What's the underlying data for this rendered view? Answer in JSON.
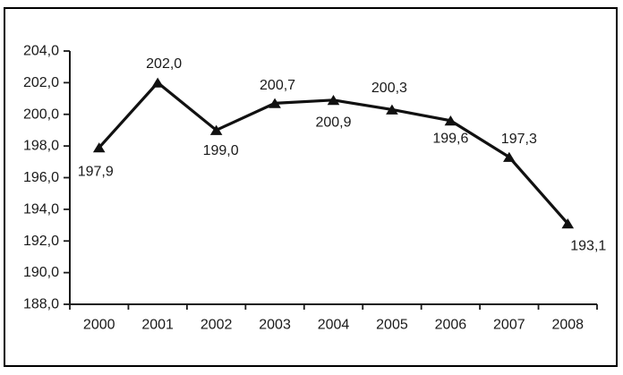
{
  "chart": {
    "background_color": "#ffffff",
    "frame_border_color": "#000000",
    "text_color": "#1a1a1a",
    "series_color": "#111111"
  },
  "chart_data": {
    "type": "line",
    "title": "",
    "xlabel": "",
    "ylabel": "",
    "categories": [
      "2000",
      "2001",
      "2002",
      "2003",
      "2004",
      "2005",
      "2006",
      "2007",
      "2008"
    ],
    "series": [
      {
        "name": "",
        "values": [
          197.9,
          202.0,
          199.0,
          200.7,
          200.9,
          200.3,
          199.6,
          197.3,
          193.1
        ],
        "point_labels": [
          "197,9",
          "202,0",
          "199,0",
          "200,7",
          "200,9",
          "200,3",
          "199,6",
          "197,3",
          "193,1"
        ],
        "label_placement": [
          "below",
          "above",
          "below",
          "above",
          "below",
          "above",
          "below",
          "above",
          "below"
        ],
        "label_offsets": [
          [
            -4,
            27
          ],
          [
            7,
            -21
          ],
          [
            5,
            23
          ],
          [
            3,
            -20
          ],
          [
            0,
            25
          ],
          [
            -3,
            -24
          ],
          [
            0,
            20
          ],
          [
            11,
            -20
          ],
          [
            23,
            25
          ]
        ],
        "marker": "filled-triangle",
        "color": "#111111"
      }
    ],
    "ylim": [
      188.0,
      204.0
    ],
    "ytick_step": 2.0,
    "ytick_labels": [
      "188,0",
      "190,0",
      "192,0",
      "194,0",
      "196,0",
      "198,0",
      "200,0",
      "202,0",
      "204,0"
    ],
    "decimal_separator": ",",
    "grid": false,
    "legend": null
  }
}
